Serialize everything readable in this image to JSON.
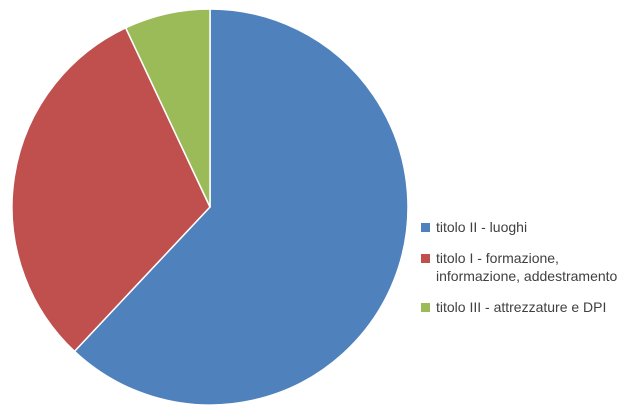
{
  "chart_data": {
    "type": "pie",
    "title": "",
    "start_angle_deg": 0,
    "direction": "clockwise",
    "legend_position": "right",
    "slices": [
      {
        "label": "titolo II - luoghi",
        "value": 62,
        "color": "#4F81BD"
      },
      {
        "label": "titolo I - formazione, informazione, addestramento",
        "value": 31,
        "color": "#C0504D"
      },
      {
        "label": "titolo III - attrezzature e DPI",
        "value": 7,
        "color": "#9BBB59"
      }
    ]
  }
}
